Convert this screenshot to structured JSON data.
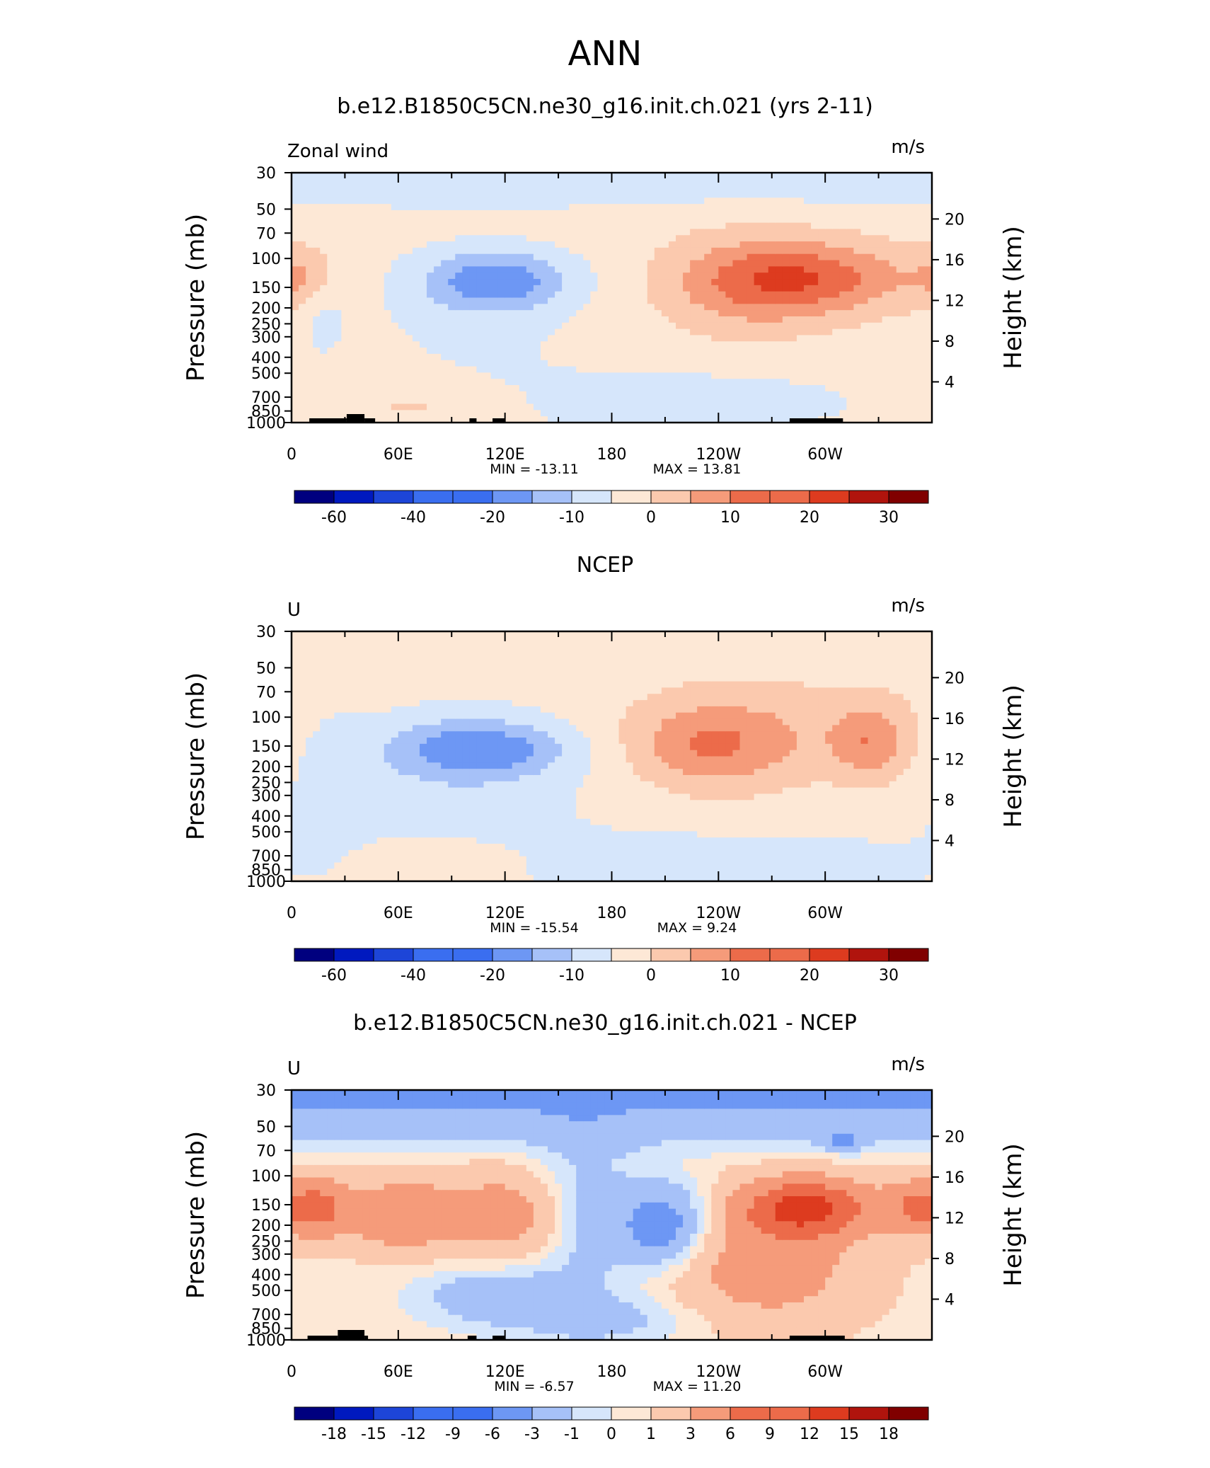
{
  "page": {
    "title": "ANN"
  },
  "colors": {
    "land": "#000000",
    "main_levels": [
      "#00007f",
      "#0019bf",
      "#1d45d8",
      "#3a6ef0",
      "#6d97f4",
      "#a6c1f8",
      "#d6e6fb",
      "#fde8d6",
      "#fbc9ae",
      "#f59b7a",
      "#ec6b4a",
      "#dd3b1f",
      "#b0140d",
      "#800000"
    ],
    "diff_levels": [
      "#00007f",
      "#0019bf",
      "#1d45d8",
      "#3a6ef0",
      "#6d97f4",
      "#a6c1f8",
      "#d6e6fb",
      "#fde8d6",
      "#fbc9ae",
      "#f59b7a",
      "#ec6b4a",
      "#dd3b1f",
      "#b0140d",
      "#800000"
    ]
  },
  "chart_data": [
    {
      "type": "contour",
      "title": "b.e12.B1850C5CN.ne30_g16.init.ch.021 (yrs 2-11)",
      "left_label": "Zonal wind",
      "right_label": "m/s",
      "ylabel": "Pressure (mb)",
      "y2label": "Height (km)",
      "x_ticks": [
        "0",
        "60E",
        "120E",
        "180",
        "120W",
        "60W"
      ],
      "y_ticks": [
        "30",
        "50",
        "70",
        "100",
        "150",
        "200",
        "250",
        "300",
        "400",
        "500",
        "700",
        "850",
        "1000"
      ],
      "y2_ticks": [
        "20",
        "16",
        "12",
        "8",
        "4"
      ],
      "min_label": "MIN = -13.11",
      "max_label": "MAX = 13.81",
      "stats": {
        "min": -13.11,
        "max": 13.81
      },
      "colorbar_labels": [
        "-60",
        "-40",
        "-20",
        "-10",
        "0",
        "10",
        "20",
        "30"
      ],
      "features": [
        {
          "region": "upper stratosphere",
          "value_range": [
            -5,
            0
          ]
        },
        {
          "region": "150 mb, 60E-140E",
          "value_range": [
            -20,
            -10
          ]
        },
        {
          "region": "100-300 mb, 150W-10W",
          "value_range": [
            10,
            20
          ]
        },
        {
          "region": "near surface, 150E-130W",
          "value_range": [
            -5,
            0
          ]
        }
      ]
    },
    {
      "type": "contour",
      "title": "NCEP",
      "left_label": "U",
      "right_label": "m/s",
      "ylabel": "Pressure (mb)",
      "y2label": "Height (km)",
      "x_ticks": [
        "0",
        "60E",
        "120E",
        "180",
        "120W",
        "60W"
      ],
      "y_ticks": [
        "30",
        "50",
        "70",
        "100",
        "150",
        "200",
        "250",
        "300",
        "400",
        "500",
        "700",
        "850",
        "1000"
      ],
      "y2_ticks": [
        "20",
        "16",
        "12",
        "8",
        "4"
      ],
      "min_label": "MIN = -15.54",
      "max_label": "MAX = 9.24",
      "stats": {
        "min": -15.54,
        "max": 9.24
      },
      "colorbar_labels": [
        "-60",
        "-40",
        "-20",
        "-10",
        "0",
        "10",
        "20",
        "30"
      ],
      "features": [
        {
          "region": "30-100 mb",
          "value_range": [
            0,
            5
          ]
        },
        {
          "region": "150 mb, 50E-150E",
          "value_range": [
            -20,
            -10
          ]
        },
        {
          "region": "100-250 mb, 140W-40W",
          "value_range": [
            5,
            15
          ]
        },
        {
          "region": "near surface, 180-60W",
          "value_range": [
            -5,
            0
          ]
        }
      ]
    },
    {
      "type": "contour",
      "title": "b.e12.B1850C5CN.ne30_g16.init.ch.021 - NCEP",
      "left_label": "U",
      "right_label": "m/s",
      "ylabel": "Pressure (mb)",
      "y2label": "Height (km)",
      "x_ticks": [
        "0",
        "60E",
        "120E",
        "180",
        "120W",
        "60W"
      ],
      "y_ticks": [
        "30",
        "50",
        "70",
        "100",
        "150",
        "200",
        "250",
        "300",
        "400",
        "500",
        "700",
        "850",
        "1000"
      ],
      "y2_ticks": [
        "20",
        "16",
        "12",
        "8",
        "4"
      ],
      "min_label": "MIN = -6.57",
      "max_label": "MAX = 11.20",
      "stats": {
        "min": -6.57,
        "max": 11.2
      },
      "colorbar_labels": [
        "-18",
        "-15",
        "-12",
        "-9",
        "-6",
        "-3",
        "-1",
        "0",
        "1",
        "3",
        "6",
        "9",
        "12",
        "15",
        "18"
      ],
      "features": [
        {
          "region": "30-80 mb",
          "value_range": [
            -6,
            -3
          ]
        },
        {
          "region": "150 mb, 0-150E",
          "value_range": [
            3,
            9
          ]
        },
        {
          "region": "150-250 mb, 170W-130W",
          "value_range": [
            -6,
            -3
          ]
        },
        {
          "region": "150 mb, 120W-0",
          "value_range": [
            6,
            12
          ]
        }
      ]
    }
  ]
}
